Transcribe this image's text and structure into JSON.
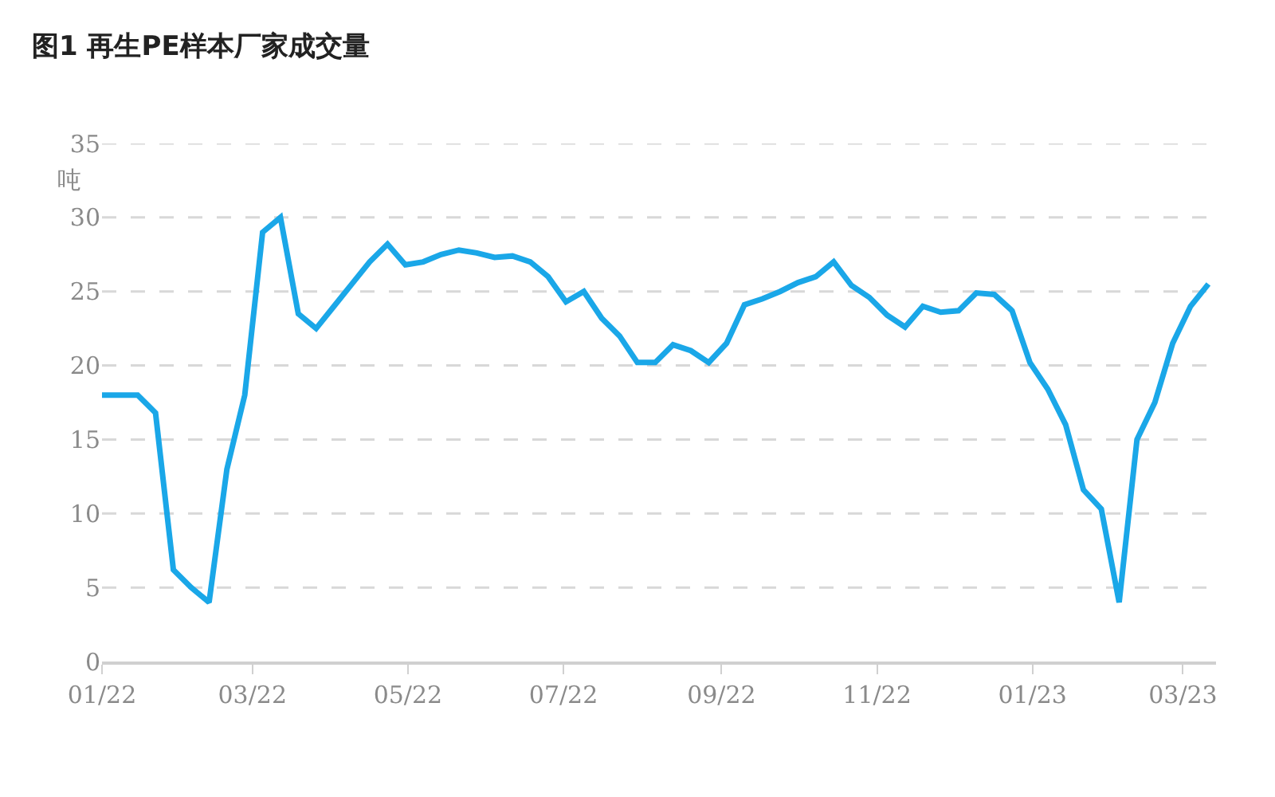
{
  "chart_data": {
    "type": "line",
    "title": "图1 再生PE样本厂家成交量",
    "ylabel": "吨",
    "x": [
      "2022-01-01",
      "2022-01-08",
      "2022-01-15",
      "2022-01-22",
      "2022-01-29",
      "2022-02-05",
      "2022-02-12",
      "2022-02-19",
      "2022-02-26",
      "2022-03-05",
      "2022-03-12",
      "2022-03-19",
      "2022-03-26",
      "2022-04-02",
      "2022-04-09",
      "2022-04-16",
      "2022-04-23",
      "2022-04-30",
      "2022-05-07",
      "2022-05-14",
      "2022-05-21",
      "2022-05-28",
      "2022-06-04",
      "2022-06-11",
      "2022-06-18",
      "2022-06-25",
      "2022-07-02",
      "2022-07-09",
      "2022-07-16",
      "2022-07-23",
      "2022-07-30",
      "2022-08-06",
      "2022-08-13",
      "2022-08-20",
      "2022-08-27",
      "2022-09-03",
      "2022-09-10",
      "2022-09-17",
      "2022-09-24",
      "2022-10-01",
      "2022-10-08",
      "2022-10-15",
      "2022-10-22",
      "2022-10-29",
      "2022-11-05",
      "2022-11-12",
      "2022-11-19",
      "2022-11-26",
      "2022-12-03",
      "2022-12-10",
      "2022-12-17",
      "2022-12-24",
      "2022-12-31",
      "2023-01-07",
      "2023-01-14",
      "2023-01-21",
      "2023-01-28",
      "2023-02-04",
      "2023-02-11",
      "2023-02-18",
      "2023-02-25",
      "2023-03-04",
      "2023-03-11"
    ],
    "values": [
      18,
      18,
      18,
      16.8,
      6.2,
      5,
      4,
      13,
      18,
      29,
      30,
      23.5,
      22.5,
      24,
      25.5,
      27,
      28.2,
      26.8,
      27,
      27.5,
      27.8,
      27.6,
      27.3,
      27.4,
      27,
      26,
      24.3,
      25,
      23.2,
      22,
      20.2,
      20.2,
      21.4,
      21,
      20.2,
      21.5,
      24.1,
      24.5,
      25,
      25.6,
      26,
      27,
      25.4,
      24.6,
      23.4,
      22.6,
      24,
      23.6,
      23.7,
      24.9,
      24.8,
      23.7,
      20.2,
      18.4,
      16,
      11.6,
      10.3,
      4,
      15,
      17.5,
      21.5,
      24,
      25.5
    ],
    "color": "#1aa7e8",
    "xlim": [
      "2022-01-01",
      "2023-03-14"
    ],
    "xticks": [
      {
        "value": "2022-01-01",
        "label": "01/22"
      },
      {
        "value": "2022-03-01",
        "label": "03/22"
      },
      {
        "value": "2022-05-01",
        "label": "05/22"
      },
      {
        "value": "2022-07-01",
        "label": "07/22"
      },
      {
        "value": "2022-09-01",
        "label": "09/22"
      },
      {
        "value": "2022-11-01",
        "label": "11/22"
      },
      {
        "value": "2023-01-01",
        "label": "01/23"
      },
      {
        "value": "2023-03-01",
        "label": "03/23"
      }
    ],
    "ylim": [
      0,
      35
    ],
    "yticks": [
      0,
      5,
      10,
      15,
      20,
      25,
      30,
      35
    ],
    "grid": "y",
    "marker": "none",
    "line_style": "solid"
  }
}
